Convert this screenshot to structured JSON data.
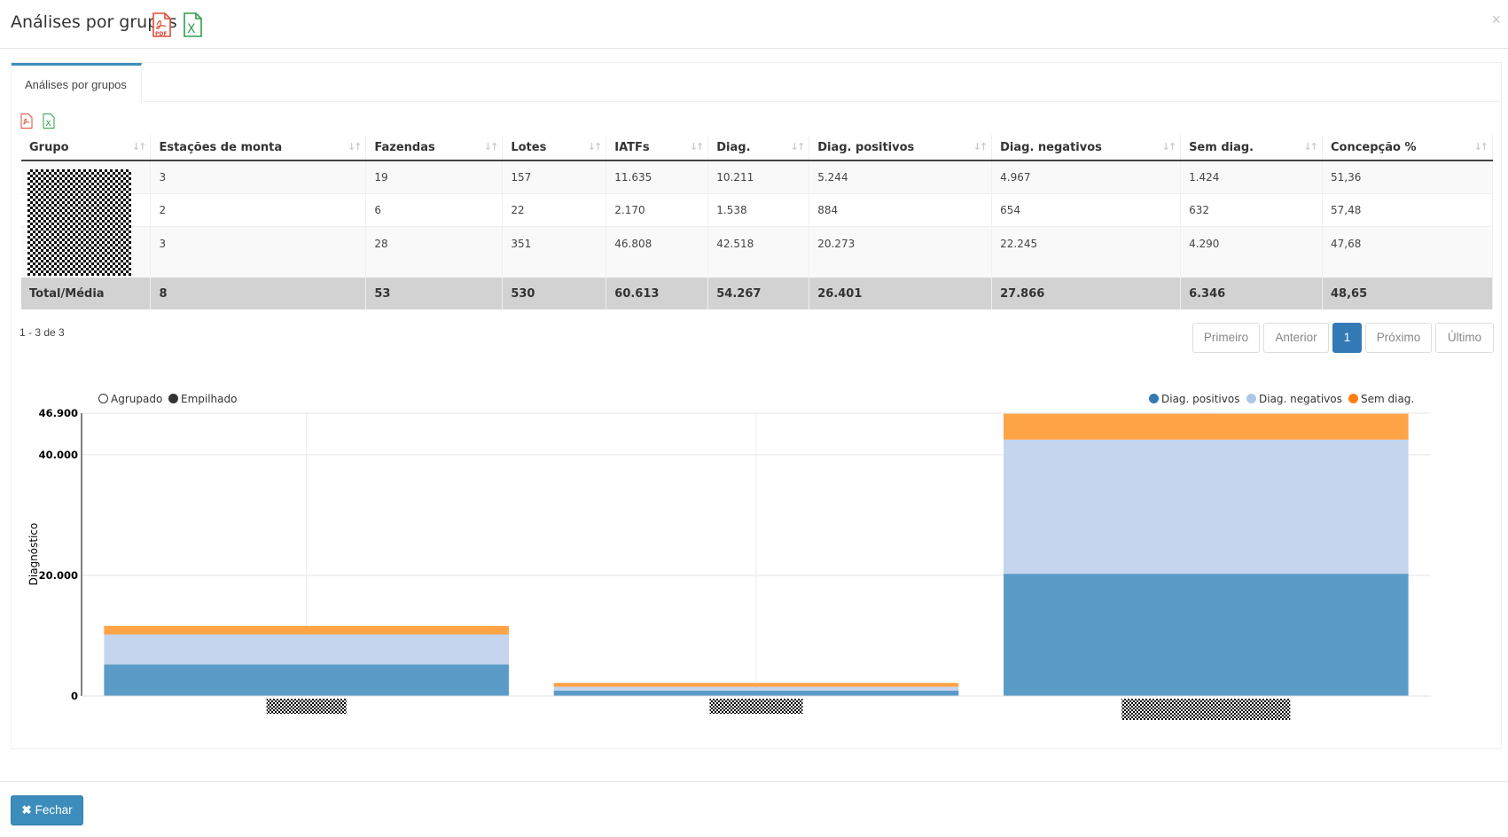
{
  "modal": {
    "title": "Análises por grupos",
    "close": "×",
    "close_button": "Fechar"
  },
  "tab": {
    "label": "Análises por grupos"
  },
  "table": {
    "columns": [
      "Grupo",
      "Estações de monta",
      "Fazendas",
      "Lotes",
      "IATFs",
      "Diag.",
      "Diag. positivos",
      "Diag. negativos",
      "Sem diag.",
      "Concepção %"
    ],
    "rows": [
      [
        "",
        "3",
        "19",
        "157",
        "11.635",
        "10.211",
        "5.244",
        "4.967",
        "1.424",
        "51,36"
      ],
      [
        "",
        "2",
        "6",
        "22",
        "2.170",
        "1.538",
        "884",
        "654",
        "632",
        "57,48"
      ],
      [
        "",
        "3",
        "28",
        "351",
        "46.808",
        "42.518",
        "20.273",
        "22.245",
        "4.290",
        "47,68"
      ]
    ],
    "total": [
      "Total/Média",
      "8",
      "53",
      "530",
      "60.613",
      "54.267",
      "26.401",
      "27.866",
      "6.346",
      "48,65"
    ]
  },
  "pagination": {
    "range": "1 - 3 de 3",
    "first": "Primeiro",
    "prev": "Anterior",
    "current": "1",
    "next": "Próximo",
    "last": "Último"
  },
  "chart_mode": {
    "grouped": "Agrupado",
    "stacked": "Empilhado",
    "selected": "stacked"
  },
  "chart_data": {
    "type": "bar",
    "stacked": true,
    "categories": [
      "",
      "",
      ""
    ],
    "series": [
      {
        "name": "Diag. positivos",
        "color": "#5b9bc8",
        "legend_color": "#337ab7",
        "values": [
          5244,
          884,
          20273
        ]
      },
      {
        "name": "Diag. negativos",
        "color": "#c4d5ed",
        "legend_color": "#aec7e8",
        "values": [
          4967,
          654,
          22245
        ]
      },
      {
        "name": "Sem diag.",
        "color": "#ffa347",
        "legend_color": "#ff7f0e",
        "values": [
          1424,
          632,
          4290
        ]
      }
    ],
    "ylabel": "Diagnóstico",
    "ylim": [
      0,
      46900
    ],
    "yticks": [
      0,
      20000,
      40000,
      46900
    ],
    "ytick_labels": [
      "0",
      "20.000",
      "40.000",
      "46.900"
    ],
    "legend": "top-right",
    "grid": true
  }
}
